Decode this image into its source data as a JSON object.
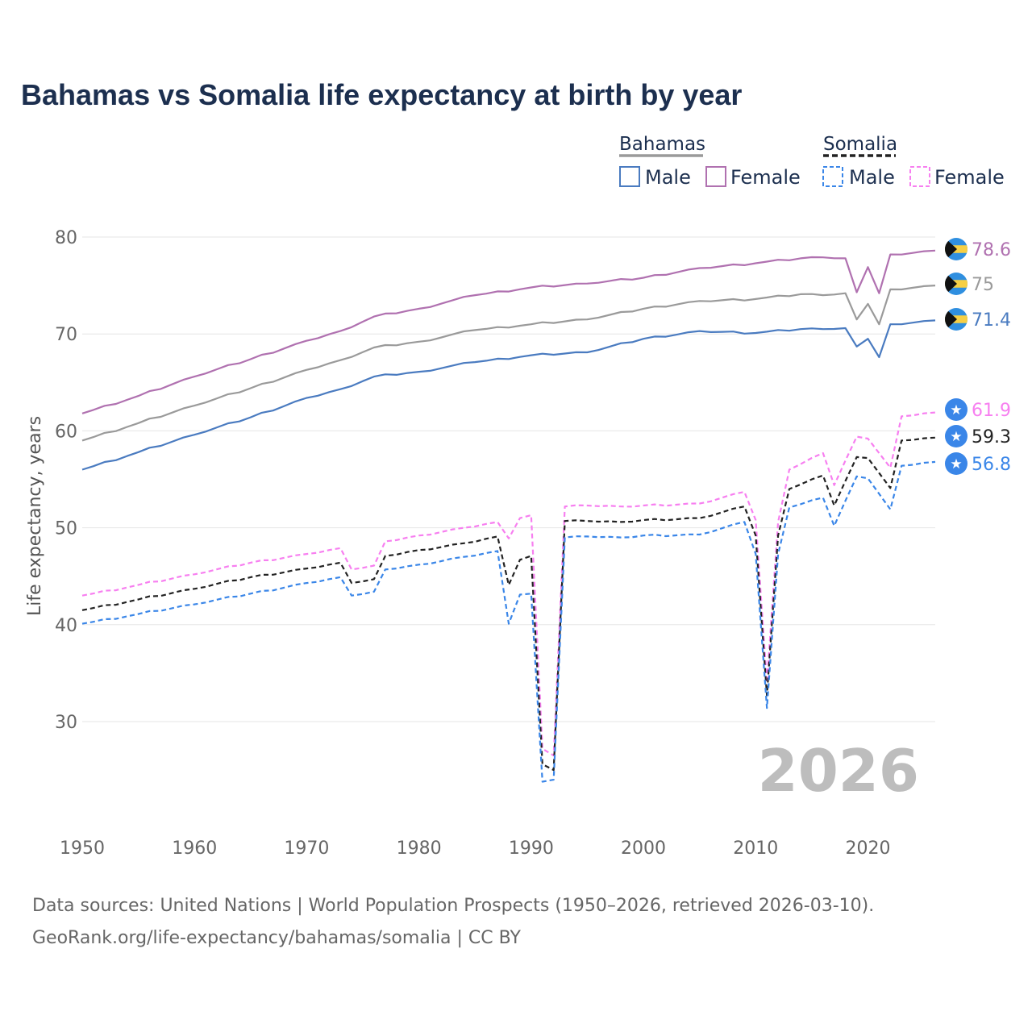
{
  "chart_data": {
    "type": "line",
    "title": "Bahamas vs Somalia life expectancy at birth by year",
    "ylabel": "Life expectancy, years",
    "xlabel": "",
    "xlim": [
      1950,
      2026
    ],
    "ylim": [
      20,
      82
    ],
    "xticks": [
      1950,
      1960,
      1970,
      1980,
      1990,
      2000,
      2010,
      2020
    ],
    "yticks": [
      30,
      40,
      50,
      60,
      70,
      80
    ],
    "current_year": "2026",
    "legend": {
      "groups": [
        {
          "name": "Bahamas",
          "items": [
            "Male",
            "Female"
          ]
        },
        {
          "name": "Somalia",
          "items": [
            "Male",
            "Female"
          ]
        }
      ]
    },
    "series": [
      {
        "name": "Bahamas Female",
        "country": "Bahamas",
        "sex": "Female",
        "color": "#b071b0",
        "dashed": false,
        "anchors": [
          [
            1950,
            61.8
          ],
          [
            1955,
            63.6
          ],
          [
            1960,
            65.6
          ],
          [
            1965,
            67.4
          ],
          [
            1970,
            69.3
          ],
          [
            1973,
            70.3
          ],
          [
            1976,
            71.8
          ],
          [
            1980,
            72.6
          ],
          [
            1985,
            74.0
          ],
          [
            1990,
            74.8
          ],
          [
            1995,
            75.2
          ],
          [
            2000,
            75.8
          ],
          [
            2005,
            76.8
          ],
          [
            2010,
            77.3
          ],
          [
            2014,
            77.8
          ],
          [
            2016,
            77.9
          ],
          [
            2018,
            77.8
          ],
          [
            2019,
            74.3
          ],
          [
            2020,
            76.9
          ],
          [
            2021,
            74.2
          ],
          [
            2022,
            78.2
          ],
          [
            2026,
            78.6
          ]
        ],
        "end_value": "78.6"
      },
      {
        "name": "Bahamas Total",
        "country": "Bahamas",
        "sex": "Total",
        "color": "#9a9a9a",
        "dashed": false,
        "anchors": [
          [
            1950,
            59.0
          ],
          [
            1955,
            60.8
          ],
          [
            1960,
            62.6
          ],
          [
            1965,
            64.4
          ],
          [
            1970,
            66.3
          ],
          [
            1973,
            67.3
          ],
          [
            1976,
            68.6
          ],
          [
            1980,
            69.2
          ],
          [
            1985,
            70.4
          ],
          [
            1990,
            71.0
          ],
          [
            1995,
            71.5
          ],
          [
            2000,
            72.6
          ],
          [
            2005,
            73.4
          ],
          [
            2010,
            73.6
          ],
          [
            2014,
            74.1
          ],
          [
            2016,
            74.0
          ],
          [
            2018,
            74.2
          ],
          [
            2019,
            71.5
          ],
          [
            2020,
            73.1
          ],
          [
            2021,
            71.0
          ],
          [
            2022,
            74.6
          ],
          [
            2026,
            75.0
          ]
        ],
        "end_value": "75"
      },
      {
        "name": "Bahamas Male",
        "country": "Bahamas",
        "sex": "Male",
        "color": "#4a7bc0",
        "dashed": false,
        "anchors": [
          [
            1950,
            56.0
          ],
          [
            1955,
            57.8
          ],
          [
            1960,
            59.6
          ],
          [
            1965,
            61.4
          ],
          [
            1970,
            63.4
          ],
          [
            1973,
            64.3
          ],
          [
            1976,
            65.6
          ],
          [
            1980,
            66.1
          ],
          [
            1985,
            67.1
          ],
          [
            1990,
            67.8
          ],
          [
            1995,
            68.1
          ],
          [
            2000,
            69.5
          ],
          [
            2005,
            70.3
          ],
          [
            2010,
            70.1
          ],
          [
            2014,
            70.5
          ],
          [
            2016,
            70.5
          ],
          [
            2018,
            70.6
          ],
          [
            2019,
            68.7
          ],
          [
            2020,
            69.5
          ],
          [
            2021,
            67.6
          ],
          [
            2022,
            71.0
          ],
          [
            2026,
            71.4
          ]
        ],
        "end_value": "71.4"
      },
      {
        "name": "Somalia Female",
        "country": "Somalia",
        "sex": "Female",
        "color": "#f77ff0",
        "dashed": true,
        "anchors": [
          [
            1950,
            43.0
          ],
          [
            1955,
            44.1
          ],
          [
            1960,
            45.2
          ],
          [
            1965,
            46.4
          ],
          [
            1970,
            47.3
          ],
          [
            1973,
            47.9
          ],
          [
            1974,
            45.7
          ],
          [
            1976,
            46.1
          ],
          [
            1977,
            48.6
          ],
          [
            1980,
            49.2
          ],
          [
            1984,
            50.0
          ],
          [
            1987,
            50.6
          ],
          [
            1988,
            48.9
          ],
          [
            1989,
            51.0
          ],
          [
            1990,
            51.3
          ],
          [
            1991,
            27.2
          ],
          [
            1992,
            26.5
          ],
          [
            1993,
            52.2
          ],
          [
            1995,
            52.3
          ],
          [
            1998,
            52.2
          ],
          [
            2000,
            52.3
          ],
          [
            2005,
            52.5
          ],
          [
            2009,
            53.7
          ],
          [
            2010,
            50.8
          ],
          [
            2011,
            34.0
          ],
          [
            2012,
            50.6
          ],
          [
            2013,
            56.0
          ],
          [
            2016,
            57.7
          ],
          [
            2017,
            54.4
          ],
          [
            2019,
            59.4
          ],
          [
            2020,
            59.2
          ],
          [
            2022,
            56.2
          ],
          [
            2023,
            61.5
          ],
          [
            2026,
            61.9
          ]
        ],
        "end_value": "61.9"
      },
      {
        "name": "Somalia Total",
        "country": "Somalia",
        "sex": "Total",
        "color": "#222222",
        "dashed": true,
        "anchors": [
          [
            1950,
            41.5
          ],
          [
            1955,
            42.6
          ],
          [
            1960,
            43.7
          ],
          [
            1965,
            44.9
          ],
          [
            1970,
            45.8
          ],
          [
            1973,
            46.4
          ],
          [
            1974,
            44.3
          ],
          [
            1976,
            44.7
          ],
          [
            1977,
            47.1
          ],
          [
            1980,
            47.7
          ],
          [
            1984,
            48.4
          ],
          [
            1987,
            49.1
          ],
          [
            1988,
            44.1
          ],
          [
            1989,
            46.7
          ],
          [
            1990,
            47.1
          ],
          [
            1991,
            25.6
          ],
          [
            1992,
            25.0
          ],
          [
            1993,
            50.7
          ],
          [
            1995,
            50.7
          ],
          [
            1998,
            50.6
          ],
          [
            2000,
            50.8
          ],
          [
            2005,
            51.0
          ],
          [
            2009,
            52.2
          ],
          [
            2010,
            49.2
          ],
          [
            2011,
            32.7
          ],
          [
            2012,
            49.2
          ],
          [
            2013,
            54.0
          ],
          [
            2016,
            55.4
          ],
          [
            2017,
            52.3
          ],
          [
            2019,
            57.3
          ],
          [
            2020,
            57.2
          ],
          [
            2022,
            54.1
          ],
          [
            2023,
            59.0
          ],
          [
            2026,
            59.3
          ]
        ],
        "end_value": "59.3"
      },
      {
        "name": "Somalia Male",
        "country": "Somalia",
        "sex": "Male",
        "color": "#3a86e8",
        "dashed": true,
        "anchors": [
          [
            1950,
            40.1
          ],
          [
            1955,
            41.1
          ],
          [
            1960,
            42.1
          ],
          [
            1965,
            43.2
          ],
          [
            1970,
            44.3
          ],
          [
            1973,
            44.9
          ],
          [
            1974,
            43.0
          ],
          [
            1976,
            43.4
          ],
          [
            1977,
            45.7
          ],
          [
            1980,
            46.2
          ],
          [
            1984,
            47.0
          ],
          [
            1987,
            47.6
          ],
          [
            1988,
            40.1
          ],
          [
            1989,
            43.1
          ],
          [
            1990,
            43.2
          ],
          [
            1991,
            23.8
          ],
          [
            1992,
            24.0
          ],
          [
            1993,
            49.0
          ],
          [
            1995,
            49.1
          ],
          [
            1998,
            49.0
          ],
          [
            2000,
            49.2
          ],
          [
            2005,
            49.3
          ],
          [
            2009,
            50.6
          ],
          [
            2010,
            47.3
          ],
          [
            2011,
            31.4
          ],
          [
            2012,
            47.3
          ],
          [
            2013,
            52.1
          ],
          [
            2016,
            53.1
          ],
          [
            2017,
            50.2
          ],
          [
            2019,
            55.3
          ],
          [
            2020,
            55.1
          ],
          [
            2022,
            51.9
          ],
          [
            2023,
            56.4
          ],
          [
            2026,
            56.8
          ]
        ],
        "end_value": "56.8"
      }
    ],
    "source_lines": [
      "Data sources: United Nations | World Population Prospects (1950–2026, retrieved 2026-03-10).",
      "GeoRank.org/life-expectancy/bahamas/somalia | CC BY"
    ]
  },
  "colors": {
    "title": "#1c2f4f",
    "grid": "#e6e6e6",
    "tick": "#666666",
    "bahamas_badge_blue": "#2f8fe0",
    "bahamas_badge_gold": "#f6cf45",
    "somalia_badge_blue": "#3a86e8"
  }
}
